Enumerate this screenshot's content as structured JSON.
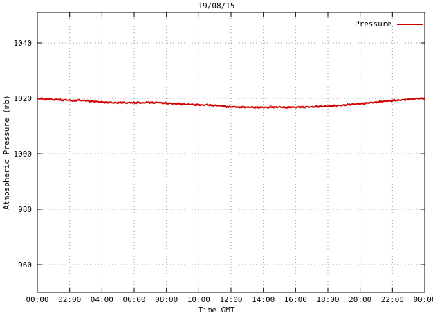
{
  "title": "19/08/15",
  "legend": {
    "label": "Pressure"
  },
  "chart_data": {
    "type": "line",
    "title": "19/08/15",
    "xlabel": "Time GMT",
    "ylabel": "Atmospheric Pressure (mb)",
    "x_tick_labels": [
      "00:00",
      "02:00",
      "04:00",
      "06:00",
      "08:00",
      "10:00",
      "12:00",
      "14:00",
      "16:00",
      "18:00",
      "20:00",
      "22:00",
      "00:00"
    ],
    "x_tick_hours": [
      0,
      2,
      4,
      6,
      8,
      10,
      12,
      14,
      16,
      18,
      20,
      22,
      24
    ],
    "y_ticks": [
      960,
      980,
      1000,
      1020,
      1040
    ],
    "ylim": [
      950,
      1051
    ],
    "xlim_hours": [
      0,
      24
    ],
    "grid": "dotted",
    "grid_color": "#999999",
    "border_color": "#000000",
    "legend_position": "top-right-inside",
    "noise_mb": 0.22,
    "series": [
      {
        "name": "Pressure",
        "color": "#d00000",
        "x_step_minutes": 15,
        "values": [
          1019.8,
          1020.0,
          1019.6,
          1019.9,
          1019.5,
          1019.7,
          1019.3,
          1019.5,
          1019.3,
          1019.1,
          1019.4,
          1019.2,
          1019.2,
          1019.0,
          1018.9,
          1018.8,
          1018.7,
          1018.5,
          1018.6,
          1018.4,
          1018.4,
          1018.6,
          1018.3,
          1018.5,
          1018.4,
          1018.5,
          1018.3,
          1018.6,
          1018.5,
          1018.4,
          1018.6,
          1018.3,
          1018.3,
          1018.2,
          1018.0,
          1018.1,
          1017.9,
          1017.8,
          1017.9,
          1017.7,
          1017.7,
          1017.6,
          1017.7,
          1017.5,
          1017.5,
          1017.4,
          1017.2,
          1017.0,
          1016.9,
          1017.0,
          1016.8,
          1016.9,
          1016.8,
          1016.9,
          1016.7,
          1016.8,
          1016.8,
          1016.7,
          1016.9,
          1016.8,
          1016.9,
          1016.8,
          1016.7,
          1016.9,
          1016.8,
          1016.9,
          1016.8,
          1017.0,
          1016.9,
          1017.0,
          1017.1,
          1017.1,
          1017.2,
          1017.3,
          1017.4,
          1017.5,
          1017.6,
          1017.7,
          1017.9,
          1018.0,
          1018.1,
          1018.2,
          1018.4,
          1018.5,
          1018.6,
          1018.8,
          1019.0,
          1019.1,
          1019.2,
          1019.3,
          1019.4,
          1019.5,
          1019.6,
          1019.8,
          1019.9,
          1020.0,
          1020.1
        ]
      }
    ]
  }
}
